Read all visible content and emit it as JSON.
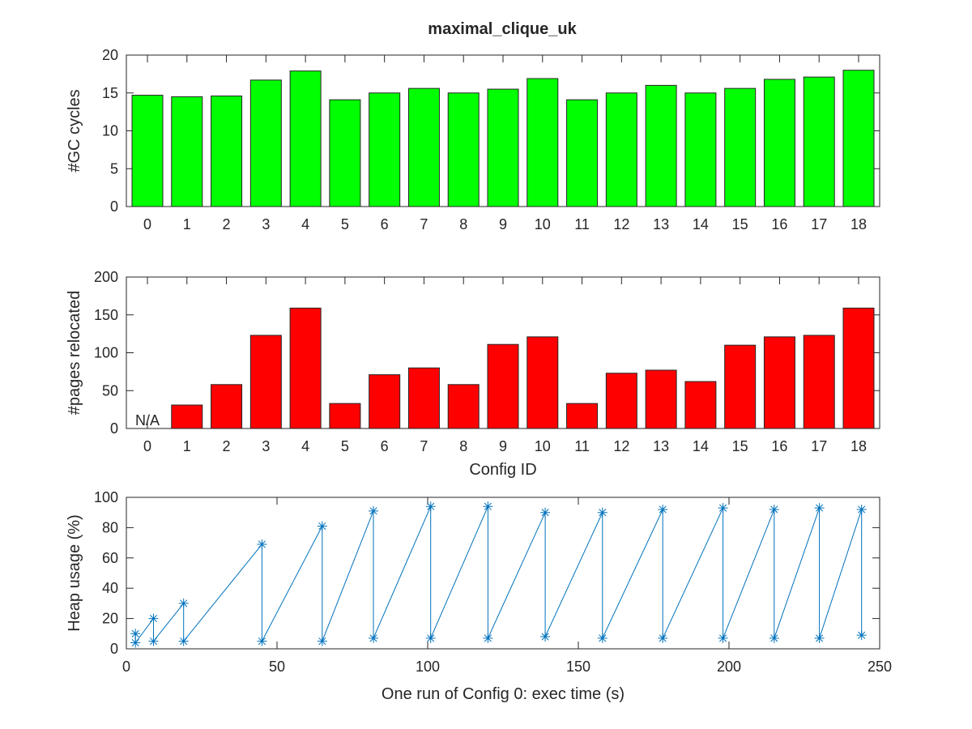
{
  "title": "maximal_clique_uk",
  "chart_data": [
    {
      "type": "bar",
      "categories": [
        "0",
        "1",
        "2",
        "3",
        "4",
        "5",
        "6",
        "7",
        "8",
        "9",
        "10",
        "11",
        "12",
        "13",
        "14",
        "15",
        "16",
        "17",
        "18"
      ],
      "values": [
        14.7,
        14.5,
        14.6,
        16.7,
        17.9,
        14.1,
        15.0,
        15.6,
        15.0,
        15.5,
        16.9,
        14.1,
        15.0,
        16.0,
        15.0,
        15.6,
        16.8,
        17.1,
        18.0
      ],
      "xlabel": "",
      "ylabel": "#GC cycles",
      "ylim": [
        0,
        20
      ],
      "yticks": [
        0,
        5,
        10,
        15,
        20
      ],
      "color": "#00ff00",
      "grid": false
    },
    {
      "type": "bar",
      "categories": [
        "0",
        "1",
        "2",
        "3",
        "4",
        "5",
        "6",
        "7",
        "8",
        "9",
        "10",
        "11",
        "12",
        "13",
        "14",
        "15",
        "16",
        "17",
        "18"
      ],
      "values": [
        null,
        31,
        58,
        123,
        159,
        33,
        71,
        80,
        58,
        111,
        121,
        33,
        73,
        77,
        62,
        110,
        121,
        123,
        159
      ],
      "annotation": "N/A",
      "xlabel": "Config ID",
      "ylabel": "#pages relocated",
      "ylim": [
        0,
        200
      ],
      "yticks": [
        0,
        50,
        100,
        150,
        200
      ],
      "color": "#ff0000",
      "grid": false
    },
    {
      "type": "line",
      "marker": "asterisk",
      "x": [
        3,
        3,
        9,
        9,
        19,
        19,
        45,
        45,
        65,
        65,
        82,
        82,
        101,
        101,
        120,
        120,
        139,
        139,
        158,
        158,
        178,
        178,
        198,
        198,
        215,
        215,
        230,
        230,
        244,
        244
      ],
      "y": [
        10,
        4,
        20,
        5,
        30,
        5,
        69,
        5,
        81,
        5,
        91,
        7,
        94,
        7,
        94,
        7,
        90,
        8,
        90,
        7,
        92,
        7,
        93,
        7,
        92,
        7,
        93,
        7,
        92,
        9
      ],
      "xlabel": "One run  of Config 0: exec time (s)",
      "ylabel": "Heap usage (%)",
      "xlim": [
        0,
        250
      ],
      "ylim": [
        0,
        100
      ],
      "xticks": [
        0,
        50,
        100,
        150,
        200,
        250
      ],
      "yticks": [
        0,
        20,
        40,
        60,
        80,
        100
      ],
      "color": "#0072bd",
      "grid": false
    }
  ]
}
